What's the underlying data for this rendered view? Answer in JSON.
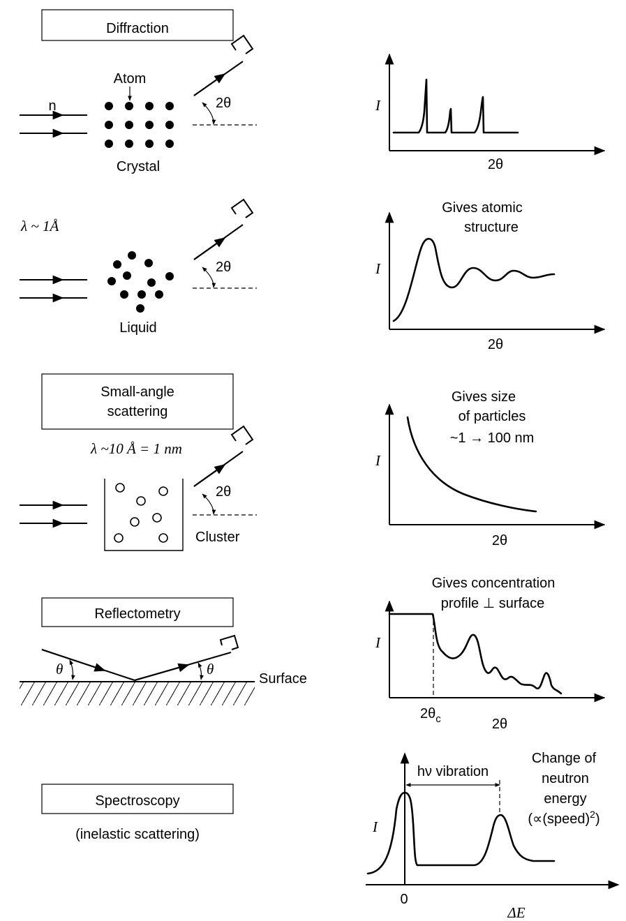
{
  "diffraction": {
    "title": "Diffraction",
    "beam_label": "n",
    "atom_label": "Atom",
    "sample_label": "Crystal",
    "angle_label": "2θ",
    "plot": {
      "ylabel": "I",
      "xlabel": "2θ"
    }
  },
  "liquid": {
    "wavelength_label": "λ ~ 1Å",
    "sample_label": "Liquid",
    "angle_label": "2θ",
    "plot": {
      "note_line1": "Gives atomic",
      "note_line2": "structure",
      "ylabel": "I",
      "xlabel": "2θ"
    }
  },
  "small_angle": {
    "title_line1": "Small-angle",
    "title_line2": "scattering",
    "wavelength_label": "λ ~10 Å = 1 nm",
    "sample_label": "Cluster",
    "angle_label": "2θ",
    "plot": {
      "note_line1": "Gives size",
      "note_line2": "of particles",
      "note_line3": "~1 → 100 nm",
      "ylabel": "I",
      "xlabel": "2θ"
    }
  },
  "reflectometry": {
    "title": "Reflectometry",
    "angle_label": "θ",
    "surface_label": "Surface",
    "plot": {
      "note_line1": "Gives concentration",
      "note_line2": "profile ⊥ surface",
      "ylabel": "I",
      "xlabel": "2θ",
      "critical_label": "2θ",
      "critical_sub": "c"
    }
  },
  "spectroscopy": {
    "title": "Spectroscopy",
    "subtitle": "(inelastic scattering)",
    "plot": {
      "vibration_label": "hν vibration",
      "note_line1": "Change of",
      "note_line2": "neutron",
      "note_line3": "energy",
      "note_line4": "(∝(speed)",
      "note_sup": "2",
      "note_close": ")",
      "ylabel": "I",
      "xlabel": "ΔE",
      "zero_label": "0"
    }
  }
}
